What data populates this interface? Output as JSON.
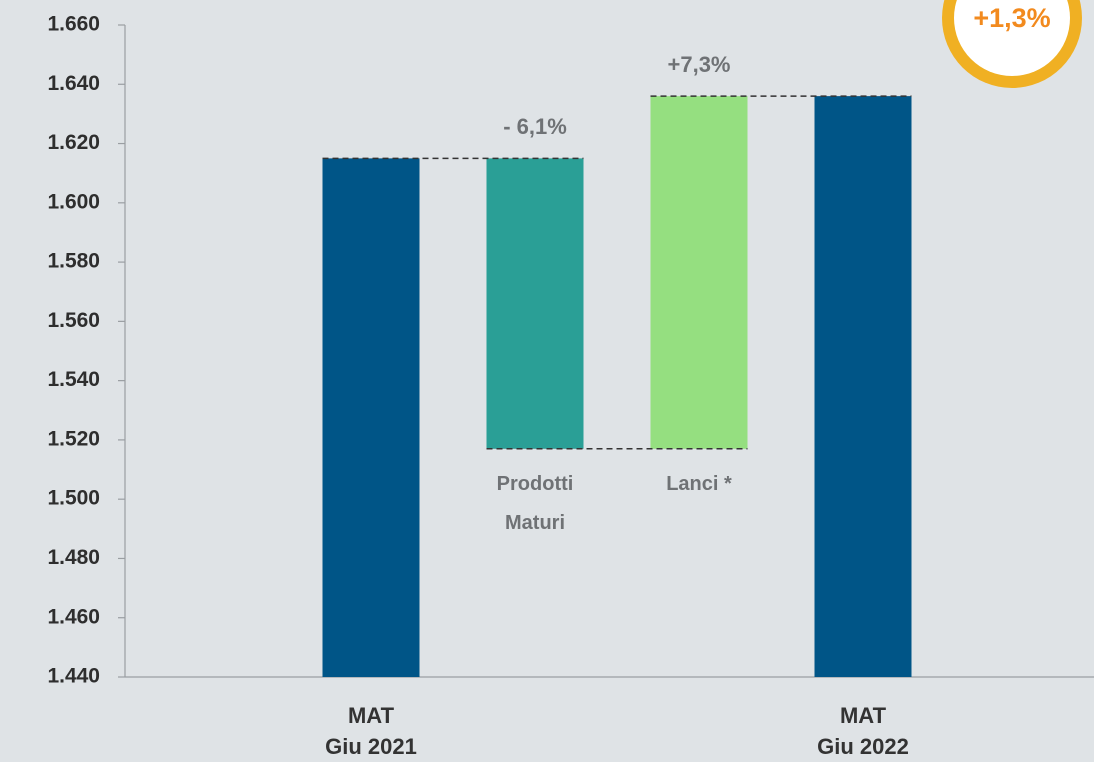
{
  "chart_data": {
    "type": "waterfall",
    "categories": [
      "MAT\nGiu 2021",
      "Prodotti\nMaturi",
      "Lanci *",
      "MAT\nGiu 2022"
    ],
    "values": [
      1615,
      -98,
      119,
      1636
    ],
    "colors": [
      "#005587",
      "#2a9f96",
      "#95df80",
      "#005587"
    ],
    "change_labels": [
      null,
      "- 6,1%",
      "+7,3%",
      null
    ],
    "badge": "+1,3%",
    "ylim": [
      1440,
      1660
    ],
    "yticks": [
      {
        "value": 1440,
        "label": "1.440"
      },
      {
        "value": 1460,
        "label": "1.460"
      },
      {
        "value": 1480,
        "label": "1.480"
      },
      {
        "value": 1500,
        "label": "1.500"
      },
      {
        "value": 1520,
        "label": "1.520"
      },
      {
        "value": 1540,
        "label": "1.540"
      },
      {
        "value": 1560,
        "label": "1.560"
      },
      {
        "value": 1580,
        "label": "1.580"
      },
      {
        "value": 1600,
        "label": "1.600"
      },
      {
        "value": 1620,
        "label": "1.620"
      },
      {
        "value": 1640,
        "label": "1.640"
      },
      {
        "value": 1660,
        "label": "1.660"
      }
    ]
  }
}
